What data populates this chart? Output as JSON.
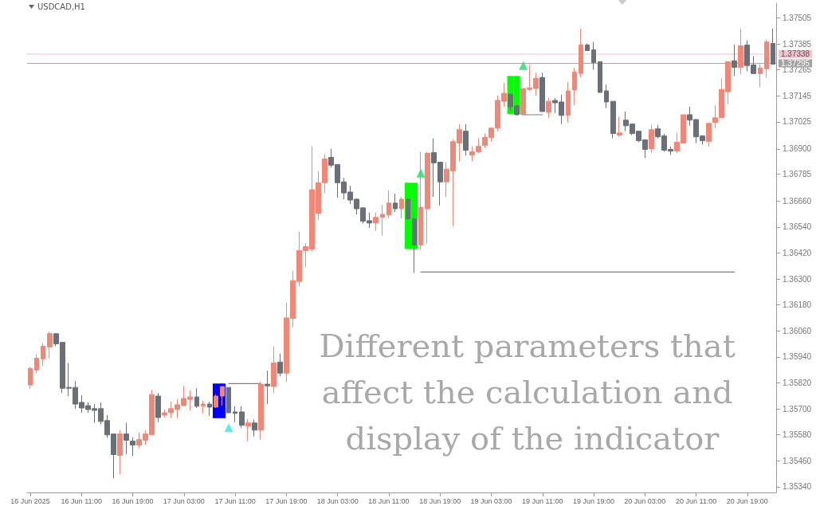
{
  "chart_data": {
    "type": "candlestick",
    "title": "USDCAD,H1",
    "annotations": [
      "Different parameters that affect the calculation and display of the indicator"
    ],
    "categories": [
      "16 Jun 2025",
      null,
      null,
      null,
      null,
      null,
      null,
      null,
      "16 Jun 11:00",
      null,
      null,
      null,
      null,
      null,
      null,
      null,
      "16 Jun 19:00",
      null,
      null,
      null,
      null,
      null,
      null,
      null,
      "17 Jun 03:00",
      null,
      null,
      null,
      null,
      null,
      null,
      null,
      "17 Jun 11:00",
      null,
      null,
      null,
      null,
      null,
      null,
      null,
      "17 Jun 19:00",
      null,
      null,
      null,
      null,
      null,
      null,
      null,
      "18 Jun 03:00",
      null,
      null,
      null,
      null,
      null,
      null,
      null,
      "18 Jun 11:00",
      null,
      null,
      null,
      null,
      null,
      null,
      null,
      "18 Jun 19:00",
      null,
      null,
      null,
      null,
      null,
      null,
      null,
      "19 Jun 03:00",
      null,
      null,
      null,
      null,
      null,
      null,
      null,
      "19 Jun 11:00",
      null,
      null,
      null,
      null,
      null,
      null,
      null,
      "19 Jun 19:00",
      null,
      null,
      null,
      null,
      null,
      null,
      null,
      "20 Jun 03:00",
      null,
      null,
      null,
      null,
      null,
      null,
      null,
      "20 Jun 11:00",
      null,
      null,
      null,
      null,
      null,
      null,
      null,
      "20 Jun 19:00",
      null,
      null,
      null,
      null
    ],
    "colors": [
      "#ef8878",
      "#ef8878",
      "#ef8878",
      "#ef8878",
      "#6b6f77",
      "#6b6f77",
      "#6b6f77",
      "#6b6f77",
      "#6b6f77",
      "#6b6f77",
      "#6b6f77",
      "#6b6f77",
      "#6b6f77",
      "#6b6f77",
      "#ef8878",
      "#6b6f77",
      "#6b6f77",
      "#ef8878",
      "#ef8878",
      "#ef8878",
      "#6b6f77",
      "#ef8878",
      "#ef8878",
      "#ef8878",
      "#ef8878",
      "#ef8878",
      "#6b6f77",
      "#ef8878",
      "#6b6f77",
      "#ef8878",
      "#ef8878",
      "#6b6f77",
      "#6b6f77",
      "#6b6f77",
      "#ef8878",
      "#6b6f77",
      "#ef8878",
      "#6b6f77",
      "#ef8878",
      "#6b6f77",
      "#ef8878",
      "#ef8878",
      "#ef8878",
      "#ef8878",
      "#ef8878",
      "#ef8878",
      "#ef8878",
      "#6b6f77",
      "#6b6f77",
      "#6b6f77",
      "#6b6f77",
      "#6b6f77",
      "#6b6f77",
      "#6b6f77",
      "#ef8878",
      "#ef8878",
      "#ef8878",
      "#6b6f77",
      "#ef8878",
      "#6b6f77",
      "#6b6f77",
      "#ef8878",
      "#ef8878",
      "#6b6f77",
      "#6b6f77",
      "#ef8878",
      "#ef8878",
      "#ef8878",
      "#6b6f77",
      "#ef8878",
      "#ef8878",
      "#ef8878",
      "#ef8878",
      "#ef8878",
      "#ef8878",
      "#6b6f77",
      "#6b6f77",
      "#ef8878",
      "#ef8878",
      "#ef8878",
      "#6b6f77",
      "#ef8878",
      "#6b6f77",
      "#6b6f77",
      "#ef8878",
      "#ef8878",
      "#ef8878",
      "#6b6f77",
      "#6b6f77",
      "#6b6f77",
      "#6b6f77",
      "#6b6f77",
      "#ef8878",
      "#6b6f77",
      "#6b6f77",
      "#6b6f77",
      "#6b6f77",
      "#ef8878",
      "#6b6f77",
      "#6b6f77",
      "#6b6f77",
      "#ef8878",
      "#ef8878",
      "#6b6f77",
      "#6b6f77",
      "#6b6f77",
      "#ef8878",
      "#ef8878",
      "#ef8878",
      "#ef8878",
      "#6b6f77",
      "#ef8878",
      "#6b6f77",
      "#6b6f77",
      "#ef8878",
      "#ef8878",
      "#6b6f77"
    ],
    "ohlc": [
      [
        1.3581,
        1.35894,
        1.35792,
        1.35887
      ],
      [
        1.35879,
        1.35952,
        1.35865,
        1.35934
      ],
      [
        1.35931,
        1.36004,
        1.35898,
        1.35989
      ],
      [
        1.35985,
        1.36058,
        1.35934,
        1.36047
      ],
      [
        1.36047,
        1.36047,
        1.35989,
        1.36
      ],
      [
        1.36007,
        1.36007,
        1.35774,
        1.35795
      ],
      [
        1.35799,
        1.35912,
        1.35759,
        1.35795
      ],
      [
        1.35799,
        1.35828,
        1.35701,
        1.35722
      ],
      [
        1.3573,
        1.35763,
        1.35682,
        1.35704
      ],
      [
        1.35715,
        1.3573,
        1.35682,
        1.35697
      ],
      [
        1.35701,
        1.35722,
        1.35635,
        1.35693
      ],
      [
        1.35701,
        1.3573,
        1.35628,
        1.35642
      ],
      [
        1.35646,
        1.35671,
        1.35566,
        1.3558
      ],
      [
        1.35584,
        1.35584,
        1.35379,
        1.35489
      ],
      [
        1.35485,
        1.35602,
        1.35398,
        1.35584
      ],
      [
        1.35584,
        1.35635,
        1.35489,
        1.35555
      ],
      [
        1.35551,
        1.35569,
        1.35482,
        1.35533
      ],
      [
        1.35533,
        1.35591,
        1.35518,
        1.35558
      ],
      [
        1.35555,
        1.35602,
        1.35533,
        1.35584
      ],
      [
        1.3558,
        1.35788,
        1.3558,
        1.35766
      ],
      [
        1.35759,
        1.35774,
        1.35639,
        1.3566
      ],
      [
        1.35671,
        1.35697,
        1.3566,
        1.35682
      ],
      [
        1.35682,
        1.35733,
        1.35657,
        1.35701
      ],
      [
        1.35697,
        1.35744,
        1.35657,
        1.35719
      ],
      [
        1.35715,
        1.35806,
        1.35712,
        1.35748
      ],
      [
        1.35744,
        1.35785,
        1.35693,
        1.35755
      ],
      [
        1.35755,
        1.35795,
        1.35704,
        1.35712
      ],
      [
        1.35712,
        1.35737,
        1.35679,
        1.35722
      ],
      [
        1.35722,
        1.35733,
        1.35668,
        1.35708
      ],
      [
        1.35708,
        1.35766,
        1.35704,
        1.35759
      ],
      [
        1.35759,
        1.35803,
        1.35715,
        1.35803
      ],
      [
        1.35799,
        1.35799,
        1.35682,
        1.35682
      ],
      [
        1.35686,
        1.35712,
        1.35639,
        1.35679
      ],
      [
        1.35686,
        1.35712,
        1.35613,
        1.35624
      ],
      [
        1.3562,
        1.35653,
        1.35551,
        1.35635
      ],
      [
        1.35635,
        1.3565,
        1.35573,
        1.35602
      ],
      [
        1.35602,
        1.35825,
        1.35558,
        1.35814
      ],
      [
        1.35814,
        1.35876,
        1.35722,
        1.35806
      ],
      [
        1.35803,
        1.35989,
        1.35774,
        1.35912
      ],
      [
        1.35916,
        1.35956,
        1.3585,
        1.35865
      ],
      [
        1.35865,
        1.3619,
        1.35825,
        1.3612
      ],
      [
        1.36117,
        1.36336,
        1.36077,
        1.36292
      ],
      [
        1.36288,
        1.36518,
        1.36266,
        1.36431
      ],
      [
        1.36431,
        1.36463,
        1.36354,
        1.36449
      ],
      [
        1.36438,
        1.36912,
        1.36427,
        1.36712
      ],
      [
        1.36602,
        1.36796,
        1.36573,
        1.36744
      ],
      [
        1.36744,
        1.36876,
        1.36697,
        1.36854
      ],
      [
        1.36861,
        1.36901,
        1.36814,
        1.36825
      ],
      [
        1.36828,
        1.36828,
        1.36675,
        1.36744
      ],
      [
        1.36748,
        1.36766,
        1.36668,
        1.36697
      ],
      [
        1.36701,
        1.3673,
        1.36646,
        1.36664
      ],
      [
        1.36668,
        1.36671,
        1.36598,
        1.36624
      ],
      [
        1.36628,
        1.36628,
        1.36555,
        1.36566
      ],
      [
        1.36569,
        1.36606,
        1.36536,
        1.36558
      ],
      [
        1.36558,
        1.36606,
        1.36522,
        1.36584
      ],
      [
        1.36584,
        1.36642,
        1.365,
        1.36598
      ],
      [
        1.36595,
        1.36708,
        1.3658,
        1.3665
      ],
      [
        1.3665,
        1.36693,
        1.36609,
        1.36624
      ],
      [
        1.36624,
        1.36679,
        1.3658,
        1.36668
      ],
      [
        1.36668,
        1.36668,
        1.36577,
        1.36577
      ],
      [
        1.36577,
        1.36609,
        1.36328,
        1.36456
      ],
      [
        1.36456,
        1.36887,
        1.36434,
        1.36631
      ],
      [
        1.36624,
        1.36887,
        1.36463,
        1.3688
      ],
      [
        1.36883,
        1.36949,
        1.36679,
        1.36836
      ],
      [
        1.36839,
        1.36839,
        1.36639,
        1.36748
      ],
      [
        1.36748,
        1.36839,
        1.36679,
        1.36807
      ],
      [
        1.36799,
        1.36945,
        1.36544,
        1.36934
      ],
      [
        1.36927,
        1.37015,
        1.36843,
        1.36989
      ],
      [
        1.36982,
        1.37015,
        1.36869,
        1.36894
      ],
      [
        1.36872,
        1.36912,
        1.36843,
        1.36887
      ],
      [
        1.36887,
        1.36949,
        1.3688,
        1.36912
      ],
      [
        1.36916,
        1.36971,
        1.36905,
        1.36953
      ],
      [
        1.36953,
        1.37,
        1.36934,
        1.36996
      ],
      [
        1.36996,
        1.37146,
        1.36982,
        1.37124
      ],
      [
        1.3712,
        1.37204,
        1.37095,
        1.37157
      ],
      [
        1.37153,
        1.37153,
        1.37077,
        1.37095
      ],
      [
        1.37099,
        1.37102,
        1.37055,
        1.37058
      ],
      [
        1.37058,
        1.37179,
        1.37058,
        1.37179
      ],
      [
        1.37175,
        1.37288,
        1.37168,
        1.37182
      ],
      [
        1.37179,
        1.37252,
        1.37146,
        1.37226
      ],
      [
        1.3723,
        1.37252,
        1.37073,
        1.37073
      ],
      [
        1.37069,
        1.37135,
        1.37044,
        1.3712
      ],
      [
        1.37124,
        1.37135,
        1.37066,
        1.37113
      ],
      [
        1.37117,
        1.3715,
        1.37015,
        1.37055
      ],
      [
        1.37055,
        1.37208,
        1.37022,
        1.37168
      ],
      [
        1.37172,
        1.37274,
        1.37102,
        1.37255
      ],
      [
        1.37248,
        1.37456,
        1.3723,
        1.3738
      ],
      [
        1.3738,
        1.37387,
        1.37354,
        1.37354
      ],
      [
        1.37358,
        1.37394,
        1.37266,
        1.37299
      ],
      [
        1.37303,
        1.37303,
        1.37161,
        1.37161
      ],
      [
        1.37168,
        1.37197,
        1.37088,
        1.37117
      ],
      [
        1.3712,
        1.3712,
        1.36949,
        1.36971
      ],
      [
        1.36964,
        1.37047,
        1.36956,
        1.36974
      ],
      [
        1.37033,
        1.37073,
        1.36982,
        1.37007
      ],
      [
        1.37015,
        1.37015,
        1.36964,
        1.36971
      ],
      [
        1.36982,
        1.36982,
        1.36931,
        1.36938
      ],
      [
        1.36942,
        1.36942,
        1.36858,
        1.36898
      ],
      [
        1.36901,
        1.37011,
        1.36883,
        1.36989
      ],
      [
        1.36993,
        1.37011,
        1.36949,
        1.36956
      ],
      [
        1.3696,
        1.36971,
        1.36887,
        1.36894
      ],
      [
        1.36898,
        1.36912,
        1.36872,
        1.3689
      ],
      [
        1.3689,
        1.36974,
        1.3688,
        1.36931
      ],
      [
        1.36927,
        1.37058,
        1.36927,
        1.37058
      ],
      [
        1.37058,
        1.37095,
        1.37007,
        1.37033
      ],
      [
        1.37036,
        1.37036,
        1.36927,
        1.36956
      ],
      [
        1.3696,
        1.3696,
        1.3692,
        1.36938
      ],
      [
        1.36934,
        1.37022,
        1.36909,
        1.37018
      ],
      [
        1.37022,
        1.37102,
        1.36996,
        1.37044
      ],
      [
        1.37044,
        1.37226,
        1.37044,
        1.37175
      ],
      [
        1.37164,
        1.37303,
        1.37106,
        1.37303
      ],
      [
        1.37307,
        1.37383,
        1.37237,
        1.37277
      ],
      [
        1.37277,
        1.37456,
        1.37245,
        1.37376
      ],
      [
        1.3738,
        1.37401,
        1.37259,
        1.37285
      ],
      [
        1.37288,
        1.37328,
        1.37248,
        1.37248
      ],
      [
        1.37248,
        1.37292,
        1.37186,
        1.37274
      ],
      [
        1.3727,
        1.37405,
        1.3723,
        1.37394
      ],
      [
        1.37387,
        1.37456,
        1.37288,
        1.37292
      ]
    ],
    "series": [
      {
        "type": "bar",
        "color": "#00ff00",
        "base": [
          null,
          null,
          null,
          null,
          null,
          null,
          null,
          null,
          null,
          null,
          null,
          null,
          null,
          null,
          null,
          null,
          null,
          null,
          null,
          null,
          null,
          null,
          null,
          null,
          null,
          null,
          null,
          null,
          null,
          null,
          null,
          null,
          null,
          null,
          null,
          null,
          null,
          null,
          null,
          null,
          null,
          null,
          null,
          null,
          null,
          null,
          null,
          null,
          null,
          null,
          null,
          null,
          null,
          null,
          null,
          null,
          null,
          null,
          null,
          1.36438,
          1.36438,
          null,
          null,
          null,
          null,
          null,
          null,
          null,
          null,
          null,
          null,
          null,
          null,
          null,
          null,
          1.37062,
          1.37062,
          null,
          null,
          null,
          null,
          null,
          null,
          null,
          null,
          null,
          null,
          null,
          null,
          null,
          null,
          null,
          null,
          null,
          null,
          null,
          null,
          null,
          null,
          null,
          null,
          null,
          null,
          null,
          null,
          null,
          null,
          null,
          null,
          null,
          null,
          null,
          null,
          null,
          null,
          null,
          null
        ],
        "values": [
          null,
          null,
          null,
          null,
          null,
          null,
          null,
          null,
          null,
          null,
          null,
          null,
          null,
          null,
          null,
          null,
          null,
          null,
          null,
          null,
          null,
          null,
          null,
          null,
          null,
          null,
          null,
          null,
          null,
          null,
          null,
          null,
          null,
          null,
          null,
          null,
          null,
          null,
          null,
          null,
          null,
          null,
          null,
          null,
          null,
          null,
          null,
          null,
          null,
          null,
          null,
          null,
          null,
          null,
          null,
          null,
          null,
          null,
          null,
          0.00306,
          0.00306,
          null,
          null,
          null,
          null,
          null,
          null,
          null,
          null,
          null,
          null,
          null,
          null,
          null,
          null,
          0.00175,
          0.00175,
          null,
          null,
          null,
          null,
          null,
          null,
          null,
          null,
          null,
          null,
          null,
          null,
          null,
          null,
          null,
          null,
          null,
          null,
          null,
          null,
          null,
          null,
          null,
          null,
          null,
          null,
          null,
          null,
          null,
          null,
          null,
          null,
          null,
          null,
          null,
          null,
          null,
          null,
          null,
          null
        ]
      },
      {
        "type": "bar",
        "color": "#0000ff",
        "base": [
          null,
          null,
          null,
          null,
          null,
          null,
          null,
          null,
          null,
          null,
          null,
          null,
          null,
          null,
          null,
          null,
          null,
          null,
          null,
          null,
          null,
          null,
          null,
          null,
          null,
          null,
          null,
          null,
          null,
          1.35657,
          1.35657,
          null,
          null,
          null,
          null,
          null,
          null,
          null,
          null,
          null,
          null,
          null,
          null,
          null,
          null,
          null,
          null,
          null,
          null,
          null,
          null,
          null,
          null,
          null,
          null,
          null,
          null,
          null,
          null,
          null,
          null,
          null,
          null,
          null,
          null,
          null,
          null,
          null,
          null,
          null,
          null,
          null,
          null,
          null,
          null,
          null,
          null,
          null,
          null,
          null,
          null,
          null,
          null,
          null,
          null,
          null,
          null,
          null,
          null,
          null,
          null,
          null,
          null,
          null,
          null,
          null,
          null,
          null,
          null,
          null,
          null,
          null,
          null,
          null,
          null,
          null,
          null,
          null,
          null,
          null,
          null,
          null,
          null,
          null,
          null,
          null,
          null
        ],
        "values": [
          null,
          null,
          null,
          null,
          null,
          null,
          null,
          null,
          null,
          null,
          null,
          null,
          null,
          null,
          null,
          null,
          null,
          null,
          null,
          null,
          null,
          null,
          null,
          null,
          null,
          null,
          null,
          null,
          null,
          0.0016,
          0.0016,
          null,
          null,
          null,
          null,
          null,
          null,
          null,
          null,
          null,
          null,
          null,
          null,
          null,
          null,
          null,
          null,
          null,
          null,
          null,
          null,
          null,
          null,
          null,
          null,
          null,
          null,
          null,
          null,
          null,
          null,
          null,
          null,
          null,
          null,
          null,
          null,
          null,
          null,
          null,
          null,
          null,
          null,
          null,
          null,
          null,
          null,
          null,
          null,
          null,
          null,
          null,
          null,
          null,
          null,
          null,
          null,
          null,
          null,
          null,
          null,
          null,
          null,
          null,
          null,
          null,
          null,
          null,
          null,
          null,
          null,
          null,
          null,
          null,
          null,
          null,
          null,
          null,
          null,
          null,
          null,
          null,
          null,
          null,
          null,
          null,
          null
        ]
      },
      {
        "type": "line",
        "color": "#7f7f7f",
        "marker": "none",
        "line_style": "solid",
        "values": [
          null,
          null,
          null,
          null,
          null,
          null,
          null,
          null,
          null,
          null,
          null,
          null,
          null,
          null,
          null,
          null,
          null,
          null,
          null,
          null,
          null,
          null,
          null,
          null,
          null,
          null,
          null,
          null,
          null,
          null,
          null,
          null,
          null,
          null,
          null,
          null,
          null,
          null,
          null,
          null,
          null,
          null,
          null,
          null,
          null,
          null,
          null,
          null,
          null,
          null,
          null,
          null,
          null,
          null,
          null,
          null,
          null,
          null,
          null,
          null,
          null,
          1.36332,
          1.36332,
          1.36332,
          1.36332,
          1.36332,
          1.36332,
          1.36332,
          1.36332,
          1.36332,
          1.36332,
          1.36332,
          1.36332,
          1.36332,
          1.36332,
          1.36332,
          1.36332,
          1.36332,
          1.36332,
          1.36332,
          1.36332,
          1.36332,
          1.36332,
          1.36332,
          1.36332,
          1.36332,
          1.36332,
          1.36332,
          1.36332,
          1.36332,
          1.36332,
          1.36332,
          1.36332,
          1.36332,
          1.36332,
          1.36332,
          1.36332,
          1.36332,
          1.36332,
          1.36332,
          1.36332,
          1.36332,
          1.36332,
          1.36332,
          1.36332,
          1.36332,
          1.36332,
          1.36332,
          1.36332,
          1.36332,
          1.36332,
          null,
          null,
          null,
          null,
          null,
          null
        ]
      },
      {
        "type": "line",
        "color": "#7f7f7f",
        "marker": "none",
        "line_style": "solid",
        "values": [
          null,
          null,
          null,
          null,
          null,
          null,
          null,
          null,
          null,
          null,
          null,
          null,
          null,
          null,
          null,
          null,
          null,
          null,
          null,
          null,
          null,
          null,
          null,
          null,
          null,
          null,
          null,
          null,
          null,
          null,
          null,
          1.35817,
          1.35817,
          1.35817,
          1.35817,
          1.35817,
          1.35817,
          null,
          null,
          null,
          null,
          null,
          null,
          null,
          null,
          null,
          null,
          null,
          null,
          null,
          null,
          null,
          null,
          null,
          null,
          null,
          null,
          null,
          null,
          null,
          null,
          null,
          null,
          null,
          null,
          null,
          null,
          null,
          null,
          null,
          null,
          null,
          null,
          null,
          null,
          null,
          null,
          1.37058,
          1.37058,
          1.37058,
          1.37058,
          null,
          null,
          null,
          null,
          null,
          null,
          null,
          null,
          null,
          null,
          null,
          null,
          null,
          null,
          null,
          null,
          null,
          null,
          null,
          null,
          null,
          null,
          null,
          null,
          null,
          null,
          null,
          null,
          null,
          null,
          null,
          null,
          null,
          null,
          null,
          null
        ]
      },
      {
        "type": "scatter",
        "color": "#22dd66",
        "marker": "triangle",
        "values": [
          null,
          null,
          null,
          null,
          null,
          null,
          null,
          null,
          null,
          null,
          null,
          null,
          null,
          null,
          null,
          null,
          null,
          null,
          null,
          null,
          null,
          null,
          null,
          null,
          null,
          null,
          null,
          null,
          null,
          null,
          null,
          null,
          null,
          null,
          null,
          null,
          null,
          null,
          null,
          null,
          null,
          null,
          null,
          null,
          null,
          null,
          null,
          null,
          null,
          null,
          null,
          null,
          null,
          null,
          null,
          null,
          null,
          null,
          null,
          null,
          null,
          1.36788,
          null,
          null,
          null,
          null,
          null,
          null,
          null,
          null,
          null,
          null,
          null,
          null,
          null,
          null,
          null,
          1.37285,
          null,
          null,
          null,
          null,
          null,
          null,
          null,
          null,
          null,
          null,
          null,
          null,
          null,
          null,
          null,
          null,
          null,
          null,
          null,
          null,
          null,
          null,
          null,
          null,
          null,
          null,
          null,
          null,
          null,
          null,
          null,
          null,
          null,
          null,
          null,
          null,
          null,
          null,
          null
        ]
      },
      {
        "type": "scatter",
        "color": "#33e6f2",
        "marker": "triangle",
        "values": [
          null,
          null,
          null,
          null,
          null,
          null,
          null,
          null,
          null,
          null,
          null,
          null,
          null,
          null,
          null,
          null,
          null,
          null,
          null,
          null,
          null,
          null,
          null,
          null,
          null,
          null,
          null,
          null,
          null,
          null,
          null,
          1.35613,
          null,
          null,
          null,
          null,
          null,
          null,
          null,
          null,
          null,
          null,
          null,
          null,
          null,
          null,
          null,
          null,
          null,
          null,
          null,
          null,
          null,
          null,
          null,
          null,
          null,
          null,
          null,
          null,
          null,
          null,
          null,
          null,
          null,
          null,
          null,
          null,
          null,
          null,
          null,
          null,
          null,
          null,
          null,
          null,
          null,
          null,
          null,
          null,
          null,
          null,
          null,
          null,
          null,
          null,
          null,
          null,
          null,
          null,
          null,
          null,
          null,
          null,
          null,
          null,
          null,
          null,
          null,
          null,
          null,
          null,
          null,
          null,
          null,
          null,
          null,
          null,
          null,
          null,
          null,
          null,
          null,
          null,
          null,
          null,
          null
        ]
      }
    ],
    "ref_lines": [
      {
        "axis": "y",
        "value": 1.37338,
        "label": "1.37338",
        "color": "#eec4ce"
      },
      {
        "axis": "y",
        "value": 1.37295,
        "label": "1.37295",
        "color": "#a3a3a3"
      }
    ],
    "ylim": [
      1.35314,
      1.37573
    ],
    "yticks": [
      {
        "value": 1.37505,
        "label": "1.37505"
      },
      {
        "value": 1.37385,
        "label": "1.37385"
      },
      {
        "value": 1.37265,
        "label": "1.37265"
      },
      {
        "value": 1.37145,
        "label": "1.37145"
      },
      {
        "value": 1.37025,
        "label": "1.37025"
      },
      {
        "value": 1.369,
        "label": "1.36900"
      },
      {
        "value": 1.36785,
        "label": "1.36785"
      },
      {
        "value": 1.3666,
        "label": "1.36660"
      },
      {
        "value": 1.3654,
        "label": "1.36540"
      },
      {
        "value": 1.3642,
        "label": "1.36420"
      },
      {
        "value": 1.363,
        "label": "1.36300"
      },
      {
        "value": 1.3618,
        "label": "1.36180"
      },
      {
        "value": 1.3606,
        "label": "1.36060"
      },
      {
        "value": 1.3594,
        "label": "1.35940"
      },
      {
        "value": 1.3582,
        "label": "1.35820"
      },
      {
        "value": 1.357,
        "label": "1.35700"
      },
      {
        "value": 1.3558,
        "label": "1.35580"
      },
      {
        "value": 1.3546,
        "label": "1.35460"
      },
      {
        "value": 1.3534,
        "label": "1.35340"
      }
    ],
    "tick_labels": true
  }
}
